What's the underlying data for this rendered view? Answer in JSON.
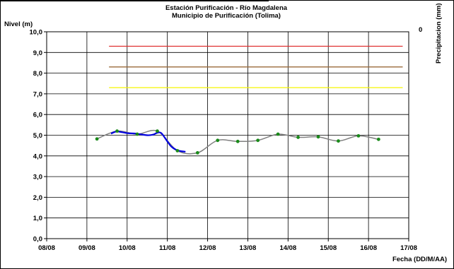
{
  "chart_data": {
    "type": "line",
    "title": "Estación Purificación - Río Magdalena",
    "subtitle": "Municipio de Purificación (Tolima)",
    "ylabel": "Nivel (m)",
    "xlabel": "Fecha (DD/M/AA)",
    "y2label": "Precipitacion (mm)",
    "y2_ticks": [
      "0"
    ],
    "ylim": [
      0,
      10
    ],
    "y_ticks": [
      "0,0",
      "1,0",
      "2,0",
      "3,0",
      "4,0",
      "5,0",
      "6,0",
      "7,0",
      "8,0",
      "9,0",
      "10,0"
    ],
    "x_ticks": [
      "08/08",
      "09/08",
      "10/08",
      "11/08",
      "12/08",
      "13/08",
      "14/08",
      "15/08",
      "16/08",
      "17/08"
    ],
    "xlim": [
      0,
      9
    ],
    "grid": true,
    "threshold_lines": [
      {
        "color": "#e03030",
        "value": 9.3,
        "x_start": 1.55,
        "x_end": 8.85
      },
      {
        "color": "#9a6a3a",
        "value": 8.3,
        "x_start": 1.55,
        "x_end": 8.85
      },
      {
        "color": "#f5f500",
        "value": 7.3,
        "x_start": 1.55,
        "x_end": 8.85
      }
    ],
    "series": [
      {
        "color": "#808080",
        "points": [
          [
            1.25,
            4.82
          ],
          [
            1.75,
            5.2
          ],
          [
            2.25,
            5.05
          ],
          [
            2.75,
            5.2
          ],
          [
            3.25,
            4.25
          ],
          [
            3.75,
            4.15
          ],
          [
            4.25,
            4.75
          ],
          [
            4.75,
            4.7
          ],
          [
            5.25,
            4.75
          ],
          [
            5.75,
            5.05
          ],
          [
            6.25,
            4.9
          ],
          [
            6.75,
            4.92
          ],
          [
            7.25,
            4.72
          ],
          [
            7.75,
            4.97
          ],
          [
            8.25,
            4.8
          ]
        ]
      },
      {
        "color": "#0000dd",
        "points": [
          [
            1.6,
            5.08
          ],
          [
            1.75,
            5.18
          ],
          [
            2.0,
            5.1
          ],
          [
            2.2,
            5.08
          ],
          [
            2.5,
            5.0
          ],
          [
            2.65,
            5.03
          ],
          [
            2.75,
            5.12
          ],
          [
            2.85,
            5.1
          ],
          [
            3.0,
            4.7
          ],
          [
            3.1,
            4.45
          ],
          [
            3.25,
            4.27
          ],
          [
            3.45,
            4.2
          ]
        ]
      }
    ],
    "marker_color": "#1a8a1a"
  }
}
